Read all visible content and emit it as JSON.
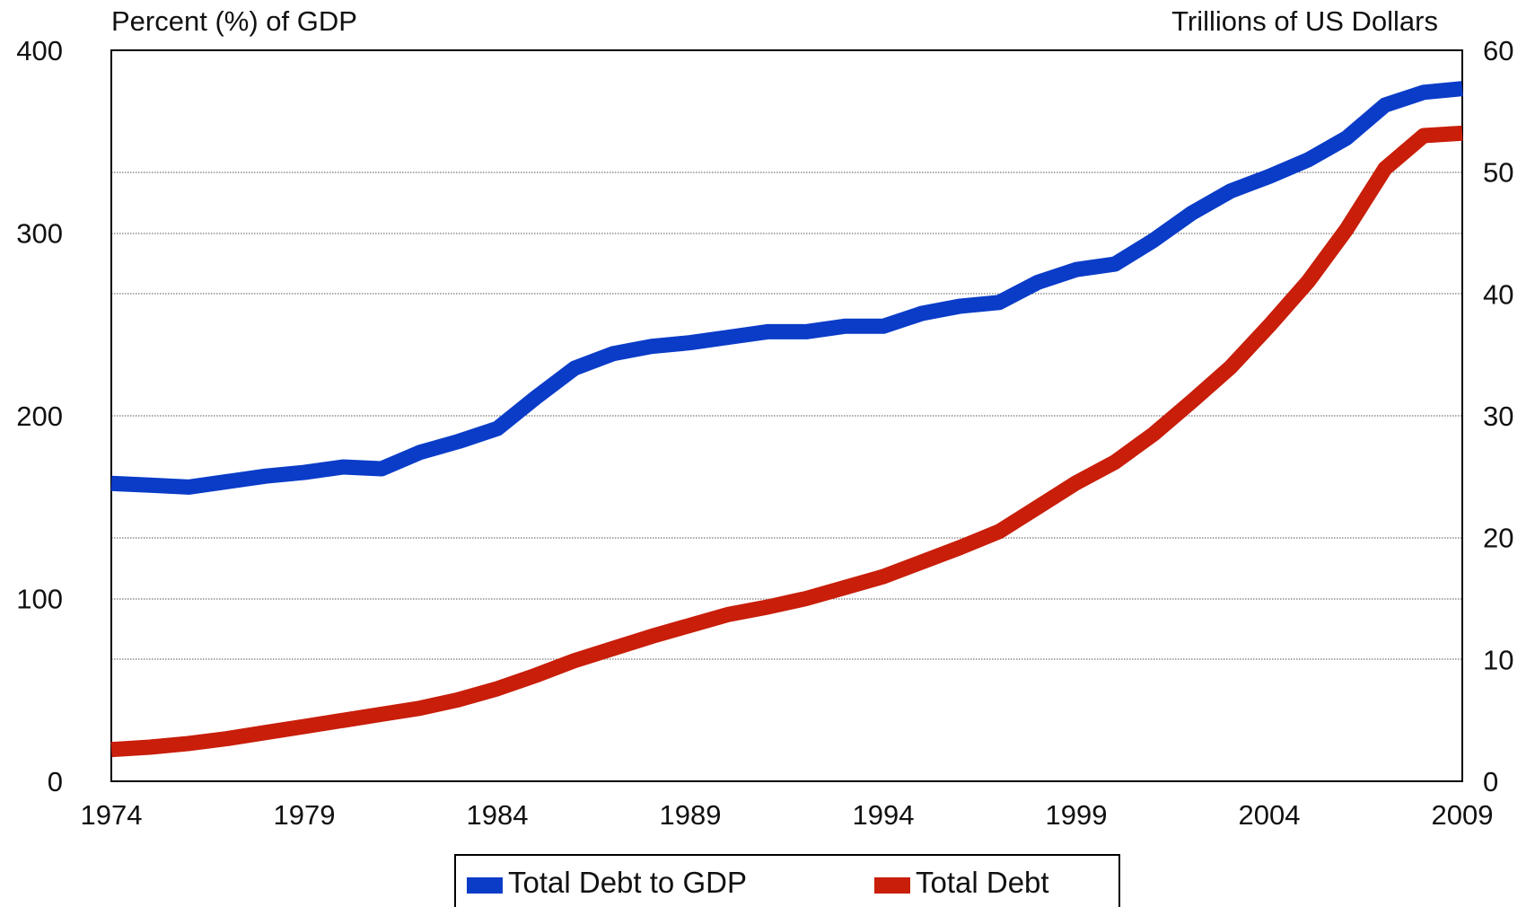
{
  "chart_data": {
    "type": "line",
    "title": "",
    "y_left_label": "Percent (%) of GDP",
    "y_right_label": "Trillions of US Dollars",
    "ylim_left": [
      0,
      400
    ],
    "ylim_right": [
      0,
      60
    ],
    "xlim": [
      1974,
      2009
    ],
    "x_ticks": [
      "1974",
      "1979",
      "1984",
      "1989",
      "1994",
      "1999",
      "2004",
      "2009"
    ],
    "y_left_ticks": [
      "0",
      "100",
      "200",
      "300",
      "400"
    ],
    "y_right_ticks": [
      "0",
      "10",
      "20",
      "30",
      "40",
      "50",
      "60"
    ],
    "grid": "horizontal dotted lines at right-axis ticks",
    "legend_position": "bottom-center",
    "series": [
      {
        "name": "Total Debt to GDP",
        "axis": "left",
        "color": "#0a3cc8",
        "x": [
          1974,
          1975,
          1976,
          1977,
          1978,
          1979,
          1980,
          1981,
          1982,
          1983,
          1984,
          1985,
          1986,
          1987,
          1988,
          1989,
          1990,
          1991,
          1992,
          1993,
          1994,
          1995,
          1996,
          1997,
          1998,
          1999,
          2000,
          2001,
          2002,
          2003,
          2004,
          2005,
          2006,
          2007,
          2008,
          2009
        ],
        "values": [
          163,
          162,
          161,
          164,
          167,
          169,
          172,
          171,
          180,
          186,
          193,
          210,
          226,
          234,
          238,
          240,
          243,
          246,
          246,
          249,
          249,
          256,
          260,
          262,
          273,
          280,
          283,
          296,
          311,
          323,
          331,
          340,
          352,
          370,
          377,
          379
        ]
      },
      {
        "name": "Total Debt",
        "axis": "right",
        "color": "#c81e0a",
        "x": [
          1974,
          1975,
          1976,
          1977,
          1978,
          1979,
          1980,
          1981,
          1982,
          1983,
          1984,
          1985,
          1986,
          1987,
          1988,
          1989,
          1990,
          1991,
          1992,
          1993,
          1994,
          1995,
          1996,
          1997,
          1998,
          1999,
          2000,
          2001,
          2002,
          2003,
          2004,
          2005,
          2006,
          2007,
          2008,
          2009
        ],
        "values": [
          2.6,
          2.8,
          3.1,
          3.5,
          4.0,
          4.5,
          5.0,
          5.5,
          6.0,
          6.7,
          7.6,
          8.7,
          9.9,
          10.9,
          11.9,
          12.8,
          13.7,
          14.3,
          15.0,
          15.9,
          16.8,
          18.0,
          19.2,
          20.5,
          22.5,
          24.5,
          26.2,
          28.5,
          31.2,
          34.0,
          37.4,
          41.0,
          45.3,
          50.3,
          53.0,
          53.2
        ]
      }
    ]
  }
}
